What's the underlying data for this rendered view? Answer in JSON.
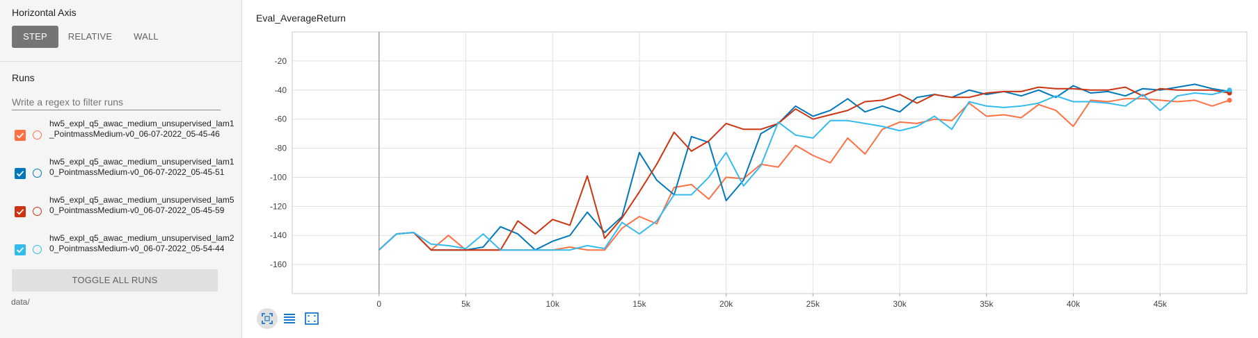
{
  "sidebar": {
    "horizontal_axis_title": "Horizontal Axis",
    "axis_options": [
      "STEP",
      "RELATIVE",
      "WALL"
    ],
    "axis_selected": "STEP",
    "runs_title": "Runs",
    "filter_placeholder": "Write a regex to filter runs",
    "runs": [
      {
        "label": "hw5_expl_q5_awac_medium_unsupervised_lam1_PointmassMedium-v0_06-07-2022_05-45-46",
        "color": "#ff7043",
        "checked": true
      },
      {
        "label": "hw5_expl_q5_awac_medium_unsupervised_lam10_PointmassMedium-v0_06-07-2022_05-45-51",
        "color": "#0077bb",
        "checked": true
      },
      {
        "label": "hw5_expl_q5_awac_medium_unsupervised_lam50_PointmassMedium-v0_06-07-2022_05-45-59",
        "color": "#cc3311",
        "checked": true
      },
      {
        "label": "hw5_expl_q5_awac_medium_unsupervised_lam20_PointmassMedium-v0_06-07-2022_05-54-44",
        "color": "#33bbee",
        "checked": true
      }
    ],
    "toggle_all_label": "TOGGLE ALL RUNS",
    "data_dir": "data/"
  },
  "toolbar": {
    "icons": [
      "fit-domain-icon",
      "data-table-icon",
      "expand-chart-icon"
    ]
  },
  "chart_data": {
    "type": "line",
    "title": "Eval_AverageReturn",
    "xlabel": "",
    "ylabel": "",
    "xlim": [
      -5000,
      50000
    ],
    "ylim": [
      -180,
      0
    ],
    "x_ticks": [
      0,
      5000,
      10000,
      15000,
      20000,
      25000,
      30000,
      35000,
      40000,
      45000
    ],
    "x_tick_labels": [
      "0",
      "5k",
      "10k",
      "15k",
      "20k",
      "25k",
      "30k",
      "35k",
      "40k",
      "45k"
    ],
    "y_ticks": [
      -20,
      -40,
      -60,
      -80,
      -100,
      -120,
      -140,
      -160
    ],
    "y_tick_labels": [
      "-20",
      "-40",
      "-60",
      "-80",
      "-100",
      "-120",
      "-140",
      "-160"
    ],
    "grid": true,
    "series": [
      {
        "name": "hw5_expl_q5_awac_medium_unsupervised_lam1_PointmassMedium-v0_06-07-2022_05-45-46",
        "color": "#ff7043",
        "x": [
          0,
          1000,
          2000,
          3000,
          4000,
          5000,
          6000,
          7000,
          8000,
          9000,
          10000,
          11000,
          12000,
          13000,
          14000,
          15000,
          16000,
          17000,
          18000,
          19000,
          20000,
          21000,
          22000,
          23000,
          24000,
          25000,
          26000,
          27000,
          28000,
          29000,
          30000,
          31000,
          32000,
          33000,
          34000,
          35000,
          36000,
          37000,
          38000,
          39000,
          40000,
          41000,
          42000,
          43000,
          44000,
          45000,
          46000,
          47000,
          48000,
          49000
        ],
        "y": [
          -150,
          -139,
          -138,
          -150,
          -140,
          -150,
          -150,
          -150,
          -150,
          -150,
          -150,
          -148,
          -150,
          -150,
          -135,
          -127,
          -132,
          -107,
          -105,
          -115,
          -100,
          -101,
          -91,
          -93,
          -78,
          -85,
          -90,
          -73,
          -84,
          -67,
          -62,
          -63,
          -60,
          -61,
          -49,
          -58,
          -57,
          -59,
          -50,
          -54,
          -65,
          -47,
          -48,
          -46,
          -46,
          -47,
          -48,
          -47,
          -51,
          -47
        ]
      },
      {
        "name": "hw5_expl_q5_awac_medium_unsupervised_lam10_PointmassMedium-v0_06-07-2022_05-45-51",
        "color": "#0077bb",
        "x": [
          0,
          1000,
          2000,
          3000,
          4000,
          5000,
          6000,
          7000,
          8000,
          9000,
          10000,
          11000,
          12000,
          13000,
          14000,
          15000,
          16000,
          17000,
          18000,
          19000,
          20000,
          21000,
          22000,
          23000,
          24000,
          25000,
          26000,
          27000,
          28000,
          29000,
          30000,
          31000,
          32000,
          33000,
          34000,
          35000,
          36000,
          37000,
          38000,
          39000,
          40000,
          41000,
          42000,
          43000,
          44000,
          45000,
          46000,
          47000,
          48000,
          49000
        ],
        "y": [
          -150,
          -139,
          -138,
          -150,
          -150,
          -150,
          -148,
          -134,
          -139,
          -150,
          -144,
          -140,
          -124,
          -138,
          -127,
          -83,
          -102,
          -112,
          -72,
          -76,
          -116,
          -102,
          -70,
          -63,
          -51,
          -58,
          -54,
          -46,
          -55,
          -51,
          -55,
          -45,
          -43,
          -45,
          -40,
          -43,
          -41,
          -44,
          -40,
          -45,
          -37,
          -42,
          -41,
          -44,
          -39,
          -40,
          -38,
          -36,
          -39,
          -41
        ]
      },
      {
        "name": "hw5_expl_q5_awac_medium_unsupervised_lam50_PointmassMedium-v0_06-07-2022_05-45-59",
        "color": "#cc3311",
        "x": [
          0,
          1000,
          2000,
          3000,
          4000,
          5000,
          6000,
          7000,
          8000,
          9000,
          10000,
          11000,
          12000,
          13000,
          14000,
          15000,
          16000,
          17000,
          18000,
          19000,
          20000,
          21000,
          22000,
          23000,
          24000,
          25000,
          26000,
          27000,
          28000,
          29000,
          30000,
          31000,
          32000,
          33000,
          34000,
          35000,
          36000,
          37000,
          38000,
          39000,
          40000,
          41000,
          42000,
          43000,
          44000,
          45000,
          46000,
          47000,
          48000,
          49000
        ],
        "y": [
          -150,
          -139,
          -138,
          -150,
          -150,
          -150,
          -150,
          -150,
          -130,
          -139,
          -129,
          -133,
          -99,
          -142,
          -128,
          -110,
          -91,
          -69,
          -82,
          -75,
          -63,
          -67,
          -67,
          -63,
          -53,
          -60,
          -57,
          -54,
          -48,
          -47,
          -43,
          -49,
          -43,
          -45,
          -45,
          -42,
          -41,
          -41,
          -38,
          -39,
          -39,
          -40,
          -40,
          -38,
          -44,
          -39,
          -40,
          -40,
          -40,
          -42
        ]
      },
      {
        "name": "hw5_expl_q5_awac_medium_unsupervised_lam20_PointmassMedium-v0_06-07-2022_05-54-44",
        "color": "#33bbee",
        "x": [
          0,
          1000,
          2000,
          3000,
          4000,
          5000,
          6000,
          7000,
          8000,
          9000,
          10000,
          11000,
          12000,
          13000,
          14000,
          15000,
          16000,
          17000,
          18000,
          19000,
          20000,
          21000,
          22000,
          23000,
          24000,
          25000,
          26000,
          27000,
          28000,
          29000,
          30000,
          31000,
          32000,
          33000,
          34000,
          35000,
          36000,
          37000,
          38000,
          39000,
          40000,
          41000,
          42000,
          43000,
          44000,
          45000,
          46000,
          47000,
          48000,
          49000
        ],
        "y": [
          -150,
          -139,
          -138,
          -146,
          -147,
          -149,
          -139,
          -150,
          -150,
          -150,
          -150,
          -150,
          -147,
          -149,
          -131,
          -139,
          -130,
          -112,
          -112,
          -100,
          -83,
          -106,
          -92,
          -62,
          -71,
          -73,
          -61,
          -61,
          -63,
          -65,
          -68,
          -65,
          -58,
          -67,
          -48,
          -51,
          -52,
          -51,
          -49,
          -44,
          -48,
          -48,
          -49,
          -51,
          -43,
          -54,
          -44,
          -42,
          -43,
          -40
        ]
      }
    ]
  }
}
